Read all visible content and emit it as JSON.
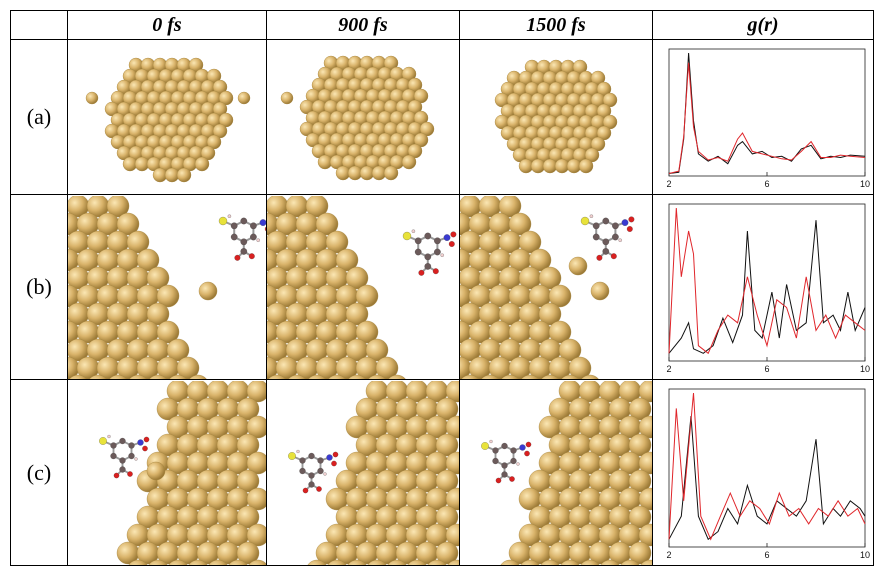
{
  "header": {
    "col_blank": "",
    "col_0": "0 fs",
    "col_1": "900 fs",
    "col_2": "1500 fs",
    "col_3": "g(r)"
  },
  "rows": [
    {
      "label": "(a)"
    },
    {
      "label": "(b)"
    },
    {
      "label": "(c)"
    }
  ],
  "colors": {
    "gold": "#d9b36a",
    "black_series": "#111111",
    "red_series": "#e0262b",
    "sulfur": "#e8e23a",
    "oxygen": "#d92020",
    "nitrogen": "#3a3ad0",
    "carbon": "#6b5a5a"
  },
  "chart_data": [
    {
      "type": "line",
      "panel": "(a)",
      "x_ticks": [
        "2",
        "6",
        "10"
      ],
      "xlim": [
        2,
        10
      ],
      "series": [
        {
          "values": [
            [
              2.0,
              0.02
            ],
            [
              2.4,
              0.03
            ],
            [
              2.6,
              0.3
            ],
            [
              2.8,
              1.0
            ],
            [
              3.0,
              0.45
            ],
            [
              3.2,
              0.18
            ],
            [
              3.6,
              0.12
            ],
            [
              4.0,
              0.16
            ],
            [
              4.4,
              0.1
            ],
            [
              4.8,
              0.25
            ],
            [
              5.0,
              0.28
            ],
            [
              5.4,
              0.18
            ],
            [
              5.8,
              0.2
            ],
            [
              6.2,
              0.15
            ],
            [
              6.6,
              0.16
            ],
            [
              7.0,
              0.12
            ],
            [
              7.4,
              0.22
            ],
            [
              7.8,
              0.25
            ],
            [
              8.2,
              0.14
            ],
            [
              8.6,
              0.16
            ],
            [
              9.0,
              0.15
            ],
            [
              9.4,
              0.17
            ],
            [
              10.0,
              0.16
            ]
          ]
        },
        {
          "values": [
            [
              2.0,
              0.02
            ],
            [
              2.4,
              0.04
            ],
            [
              2.6,
              0.32
            ],
            [
              2.8,
              0.92
            ],
            [
              3.0,
              0.4
            ],
            [
              3.2,
              0.2
            ],
            [
              3.6,
              0.13
            ],
            [
              4.0,
              0.15
            ],
            [
              4.4,
              0.12
            ],
            [
              4.8,
              0.3
            ],
            [
              5.0,
              0.35
            ],
            [
              5.4,
              0.2
            ],
            [
              5.8,
              0.18
            ],
            [
              6.2,
              0.16
            ],
            [
              6.6,
              0.14
            ],
            [
              7.0,
              0.13
            ],
            [
              7.4,
              0.2
            ],
            [
              7.8,
              0.28
            ],
            [
              8.2,
              0.15
            ],
            [
              8.6,
              0.15
            ],
            [
              9.0,
              0.17
            ],
            [
              9.4,
              0.16
            ],
            [
              10.0,
              0.15
            ]
          ]
        }
      ]
    },
    {
      "type": "line",
      "panel": "(b)",
      "x_ticks": [
        "2",
        "6",
        "10"
      ],
      "xlim": [
        2,
        10
      ],
      "series": [
        {
          "values": [
            [
              2.0,
              0.05
            ],
            [
              2.5,
              0.15
            ],
            [
              2.8,
              0.25
            ],
            [
              3.0,
              0.08
            ],
            [
              3.4,
              0.05
            ],
            [
              3.8,
              0.1
            ],
            [
              4.2,
              0.28
            ],
            [
              4.6,
              0.12
            ],
            [
              5.0,
              0.3
            ],
            [
              5.2,
              0.85
            ],
            [
              5.5,
              0.2
            ],
            [
              5.8,
              0.15
            ],
            [
              6.2,
              0.45
            ],
            [
              6.5,
              0.15
            ],
            [
              6.8,
              0.5
            ],
            [
              7.2,
              0.2
            ],
            [
              7.6,
              0.25
            ],
            [
              8.0,
              0.92
            ],
            [
              8.3,
              0.25
            ],
            [
              8.7,
              0.3
            ],
            [
              9.0,
              0.2
            ],
            [
              9.3,
              0.45
            ],
            [
              9.6,
              0.2
            ],
            [
              10.0,
              0.35
            ]
          ]
        },
        {
          "values": [
            [
              2.0,
              0.05
            ],
            [
              2.3,
              1.0
            ],
            [
              2.5,
              0.55
            ],
            [
              2.8,
              0.85
            ],
            [
              3.0,
              0.7
            ],
            [
              3.2,
              0.1
            ],
            [
              3.6,
              0.05
            ],
            [
              4.0,
              0.2
            ],
            [
              4.4,
              0.3
            ],
            [
              4.8,
              0.25
            ],
            [
              5.2,
              0.55
            ],
            [
              5.6,
              0.3
            ],
            [
              6.0,
              0.1
            ],
            [
              6.4,
              0.4
            ],
            [
              6.8,
              0.35
            ],
            [
              7.2,
              0.15
            ],
            [
              7.6,
              0.55
            ],
            [
              8.0,
              0.2
            ],
            [
              8.4,
              0.3
            ],
            [
              8.8,
              0.15
            ],
            [
              9.2,
              0.3
            ],
            [
              9.6,
              0.25
            ],
            [
              10.0,
              0.2
            ]
          ]
        }
      ]
    },
    {
      "type": "line",
      "panel": "(c)",
      "x_ticks": [
        "2",
        "6",
        "10"
      ],
      "xlim": [
        2,
        10
      ],
      "series": [
        {
          "values": [
            [
              2.0,
              0.05
            ],
            [
              2.5,
              0.2
            ],
            [
              2.9,
              0.85
            ],
            [
              3.2,
              0.2
            ],
            [
              3.6,
              0.05
            ],
            [
              4.0,
              0.1
            ],
            [
              4.4,
              0.25
            ],
            [
              4.8,
              0.15
            ],
            [
              5.2,
              0.4
            ],
            [
              5.6,
              0.2
            ],
            [
              6.0,
              0.15
            ],
            [
              6.4,
              0.3
            ],
            [
              6.8,
              0.25
            ],
            [
              7.2,
              0.2
            ],
            [
              7.6,
              0.3
            ],
            [
              8.0,
              0.7
            ],
            [
              8.3,
              0.15
            ],
            [
              8.7,
              0.25
            ],
            [
              9.0,
              0.2
            ],
            [
              9.4,
              0.3
            ],
            [
              9.8,
              0.25
            ],
            [
              10.0,
              0.2
            ]
          ]
        },
        {
          "values": [
            [
              2.0,
              0.05
            ],
            [
              2.3,
              0.9
            ],
            [
              2.6,
              0.3
            ],
            [
              3.0,
              1.0
            ],
            [
              3.3,
              0.2
            ],
            [
              3.7,
              0.05
            ],
            [
              4.1,
              0.2
            ],
            [
              4.5,
              0.35
            ],
            [
              4.9,
              0.2
            ],
            [
              5.3,
              0.3
            ],
            [
              5.7,
              0.25
            ],
            [
              6.1,
              0.15
            ],
            [
              6.5,
              0.35
            ],
            [
              6.9,
              0.2
            ],
            [
              7.3,
              0.25
            ],
            [
              7.7,
              0.15
            ],
            [
              8.1,
              0.25
            ],
            [
              8.5,
              0.2
            ],
            [
              8.9,
              0.3
            ],
            [
              9.3,
              0.2
            ],
            [
              9.7,
              0.25
            ],
            [
              10.0,
              0.15
            ]
          ]
        }
      ]
    }
  ]
}
